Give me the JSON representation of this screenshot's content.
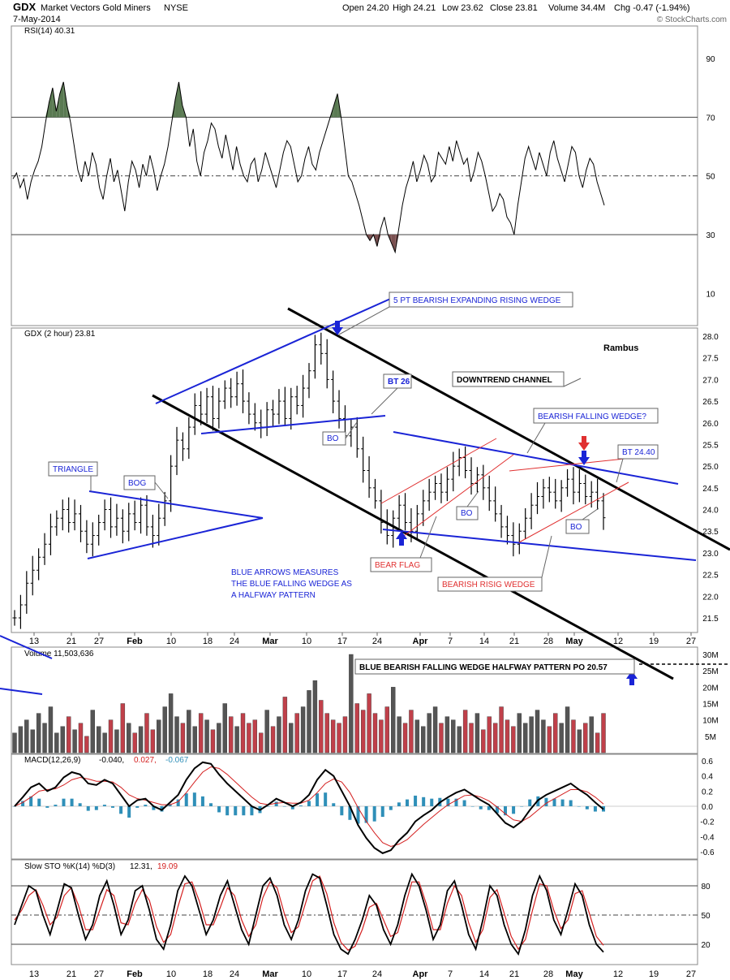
{
  "header": {
    "symbol": "GDX",
    "name": "Market Vectors Gold Miners",
    "exchange": "NYSE",
    "date": "7-May-2014",
    "copyright": "© StockCharts.com",
    "open": "Open 24.20",
    "high": "High 24.21",
    "low": "Low 23.62",
    "close": "Close 23.81",
    "volume": "Volume 34.4M",
    "chg": "Chg -0.47 (-1.94%)"
  },
  "colors": {
    "price_bar": "#000000",
    "trend_black": "#000000",
    "trend_blue": "#1a24d6",
    "trend_red": "#e03030",
    "annotation_text": "#1a24d6",
    "volume_up": "#555555",
    "volume_down": "#c0404a",
    "macd_hist": "#2f8fb8",
    "signal": "#d42020",
    "rsi_fill_over": "#5a7a52",
    "rsi_fill_under": "#7a5050"
  },
  "chart_data": [
    {
      "type": "line",
      "panel": "rsi",
      "title": "RSI(14) 40.31",
      "ylim": [
        0,
        100
      ],
      "y_ticks": [
        "90",
        "70",
        "50",
        "30",
        "10"
      ],
      "reference_lines": [
        70,
        50,
        30
      ],
      "values": [
        49,
        51,
        46,
        49,
        42,
        48,
        52,
        55,
        60,
        68,
        75,
        80,
        72,
        78,
        82,
        74,
        68,
        60,
        52,
        48,
        55,
        50,
        58,
        54,
        46,
        42,
        50,
        56,
        48,
        52,
        45,
        38,
        48,
        55,
        52,
        46,
        54,
        50,
        57,
        52,
        45,
        50,
        54,
        60,
        68,
        76,
        82,
        74,
        70,
        60,
        66,
        55,
        50,
        58,
        62,
        68,
        66,
        60,
        56,
        64,
        58,
        52,
        60,
        54,
        50,
        48,
        54,
        56,
        48,
        52,
        58,
        54,
        50,
        46,
        52,
        58,
        62,
        60,
        54,
        48,
        50,
        56,
        60,
        54,
        52,
        58,
        62,
        66,
        70,
        74,
        78,
        70,
        60,
        50,
        48,
        44,
        40,
        35,
        30,
        28,
        30,
        26,
        32,
        36,
        30,
        27,
        24,
        32,
        40,
        46,
        50,
        55,
        48,
        52,
        57,
        54,
        48,
        50,
        58,
        56,
        54,
        60,
        55,
        62,
        58,
        54,
        56,
        48,
        52,
        58,
        55,
        50,
        44,
        38,
        40,
        44,
        42,
        36,
        34,
        30,
        40,
        48,
        56,
        60,
        56,
        52,
        58,
        54,
        50,
        58,
        62,
        56,
        52,
        48,
        54,
        60,
        58,
        50,
        46,
        52,
        56,
        54,
        48,
        44,
        40
      ],
      "last_value": 40.31
    },
    {
      "type": "bar",
      "panel": "price",
      "title": "GDX (2 hour) 23.81",
      "ylim": [
        21.3,
        28.2
      ],
      "y_ticks": [
        "28.0",
        "27.5",
        "27.0",
        "26.5",
        "26.0",
        "25.5",
        "25.0",
        "24.5",
        "24.0",
        "23.5",
        "23.0",
        "22.5",
        "22.0",
        "21.5"
      ],
      "x_ticks": [
        "13",
        "21",
        "27",
        "Feb",
        "10",
        "18",
        "24",
        "Mar",
        "10",
        "17",
        "24",
        "Apr",
        "7",
        "14",
        "21",
        "28",
        "May",
        "12",
        "19",
        "27"
      ],
      "closes": [
        21.5,
        21.8,
        22.3,
        22.6,
        22.9,
        23.2,
        23.6,
        23.8,
        24.0,
        23.7,
        23.9,
        23.5,
        23.2,
        23.4,
        23.7,
        24.0,
        23.6,
        23.8,
        23.5,
        23.9,
        23.7,
        24.1,
        23.6,
        23.4,
        23.8,
        24.2,
        25.0,
        25.6,
        25.4,
        25.9,
        26.4,
        26.2,
        26.6,
        26.1,
        26.5,
        26.8,
        26.6,
        26.9,
        26.5,
        26.2,
        26.0,
        25.9,
        26.3,
        26.2,
        26.5,
        26.1,
        26.6,
        26.4,
        26.8,
        27.2,
        27.8,
        27.6,
        27.0,
        26.5,
        26.1,
        25.7,
        25.9,
        25.4,
        24.9,
        24.5,
        24.2,
        23.7,
        23.4,
        23.8,
        24.1,
        23.7,
        23.5,
        23.9,
        24.2,
        24.4,
        24.6,
        24.4,
        24.7,
        25.0,
        25.2,
        24.9,
        24.6,
        24.8,
        24.5,
        24.2,
        23.9,
        23.6,
        23.4,
        23.2,
        23.5,
        23.8,
        24.1,
        24.3,
        24.5,
        24.4,
        24.2,
        24.5,
        24.7,
        24.4,
        24.6,
        24.3,
        24.4,
        24.2,
        23.81
      ],
      "last_close": 23.81,
      "annotations": [
        "5 PT BEARISH EXPANDING RISING WEDGE",
        "Rambus",
        "BT 26",
        "DOWNTREND CHANNEL",
        "BO",
        "BEARISH FALLING WEDGE?",
        "BT 24.40",
        "TRIANGLE",
        "BOG",
        "BO",
        "BO",
        "BEAR FLAG",
        "BEARISH RISIG WEDGE",
        "BLUE ARROWS MEASURES",
        "THE BLUE FALLING WEDGE AS",
        "A HALFWAY PATTERN",
        "BLUE BEARISH FALLING WEDGE HALFWAY PATTERN PO 20.57"
      ]
    },
    {
      "type": "bar",
      "panel": "volume",
      "title": "Volume 11,503,636",
      "ylim": [
        0,
        31
      ],
      "y_ticks": [
        "30M",
        "25M",
        "20M",
        "15M",
        "10M",
        "5M"
      ],
      "values": [
        6,
        8,
        10,
        7,
        12,
        9,
        14,
        6,
        8,
        11,
        7,
        9,
        5,
        13,
        8,
        6,
        10,
        7,
        15,
        9,
        6,
        8,
        12,
        7,
        10,
        14,
        18,
        11,
        9,
        13,
        8,
        12,
        10,
        7,
        9,
        15,
        11,
        8,
        12,
        9,
        10,
        6,
        13,
        8,
        11,
        17,
        9,
        12,
        14,
        19,
        22,
        16,
        12,
        10,
        9,
        11,
        30,
        15,
        13,
        18,
        12,
        10,
        14,
        20,
        11,
        9,
        13,
        10,
        8,
        12,
        14,
        9,
        11,
        10,
        8,
        13,
        9,
        12,
        7,
        11,
        9,
        14,
        10,
        8,
        12,
        9,
        11,
        13,
        10,
        8,
        12,
        9,
        14,
        10,
        7,
        9,
        11,
        6,
        12
      ]
    },
    {
      "type": "line",
      "panel": "macd",
      "title": "MACD(12,26,9)",
      "title_values": [
        "-0.040",
        "0.027",
        "-0.067"
      ],
      "ylim": [
        -0.7,
        0.65
      ],
      "y_ticks": [
        "0.6",
        "0.4",
        "0.2",
        "0.0",
        "-0.2",
        "-0.4",
        "-0.6"
      ],
      "series": [
        {
          "values": [
            0.0,
            0.12,
            0.25,
            0.3,
            0.2,
            0.25,
            0.38,
            0.45,
            0.42,
            0.3,
            0.28,
            0.35,
            0.3,
            0.15,
            0.0,
            0.08,
            0.1,
            0.0,
            -0.05,
            0.05,
            0.15,
            0.35,
            0.5,
            0.58,
            0.56,
            0.42,
            0.3,
            0.2,
            0.1,
            0.0,
            -0.05,
            0.02,
            0.1,
            0.05,
            0.0,
            0.05,
            0.15,
            0.35,
            0.48,
            0.4,
            0.2,
            0.0,
            -0.25,
            -0.42,
            -0.55,
            -0.62,
            -0.58,
            -0.45,
            -0.35,
            -0.2,
            -0.12,
            -0.05,
            0.05,
            0.12,
            0.18,
            0.22,
            0.15,
            0.08,
            0.02,
            -0.1,
            -0.22,
            -0.28,
            -0.2,
            -0.05,
            0.08,
            0.15,
            0.2,
            0.25,
            0.3,
            0.22,
            0.15,
            0.05,
            -0.04
          ]
        },
        {
          "values": [
            0.0,
            0.05,
            0.12,
            0.2,
            0.22,
            0.23,
            0.28,
            0.35,
            0.38,
            0.36,
            0.33,
            0.33,
            0.32,
            0.25,
            0.15,
            0.1,
            0.08,
            0.05,
            0.02,
            0.02,
            0.06,
            0.18,
            0.32,
            0.45,
            0.52,
            0.5,
            0.42,
            0.32,
            0.22,
            0.12,
            0.04,
            0.02,
            0.04,
            0.05,
            0.04,
            0.04,
            0.08,
            0.18,
            0.3,
            0.36,
            0.32,
            0.18,
            -0.02,
            -0.2,
            -0.35,
            -0.48,
            -0.53,
            -0.5,
            -0.44,
            -0.34,
            -0.24,
            -0.15,
            -0.06,
            0.02,
            0.08,
            0.14,
            0.15,
            0.12,
            0.07,
            -0.01,
            -0.1,
            -0.18,
            -0.2,
            -0.14,
            -0.05,
            0.04,
            0.1,
            0.16,
            0.22,
            0.22,
            0.19,
            0.12,
            0.03
          ]
        }
      ]
    },
    {
      "type": "line",
      "panel": "stochastic",
      "title": "Slow STO %K(14) %D(3)",
      "title_values": [
        "12.31",
        "19.09"
      ],
      "ylim": [
        0,
        100
      ],
      "y_ticks": [
        "80",
        "50",
        "20"
      ],
      "reference_lines": [
        80,
        50,
        20
      ],
      "series": [
        {
          "values": [
            40,
            60,
            80,
            75,
            50,
            30,
            55,
            82,
            78,
            50,
            25,
            40,
            70,
            85,
            60,
            30,
            45,
            75,
            80,
            55,
            25,
            15,
            40,
            75,
            90,
            80,
            55,
            30,
            45,
            70,
            85,
            60,
            35,
            20,
            50,
            80,
            88,
            70,
            40,
            25,
            45,
            75,
            92,
            88,
            60,
            30,
            15,
            10,
            25,
            45,
            70,
            60,
            35,
            20,
            40,
            70,
            92,
            80,
            55,
            25,
            40,
            75,
            85,
            60,
            30,
            15,
            45,
            80,
            70,
            40,
            20,
            10,
            35,
            70,
            90,
            75,
            45,
            30,
            55,
            82,
            70,
            40,
            20,
            12
          ]
        },
        {
          "values": [
            45,
            55,
            70,
            76,
            60,
            40,
            48,
            70,
            78,
            60,
            35,
            35,
            55,
            76,
            70,
            42,
            40,
            62,
            76,
            65,
            38,
            22,
            30,
            58,
            82,
            84,
            65,
            40,
            40,
            58,
            78,
            70,
            45,
            28,
            40,
            68,
            84,
            78,
            52,
            32,
            38,
            62,
            85,
            90,
            72,
            42,
            22,
            14,
            18,
            35,
            58,
            62,
            45,
            28,
            32,
            58,
            84,
            84,
            62,
            35,
            35,
            62,
            80,
            70,
            42,
            22,
            35,
            68,
            76,
            52,
            28,
            15,
            25,
            55,
            82,
            80,
            55,
            36,
            45,
            72,
            75,
            52,
            28,
            19
          ]
        }
      ]
    }
  ]
}
